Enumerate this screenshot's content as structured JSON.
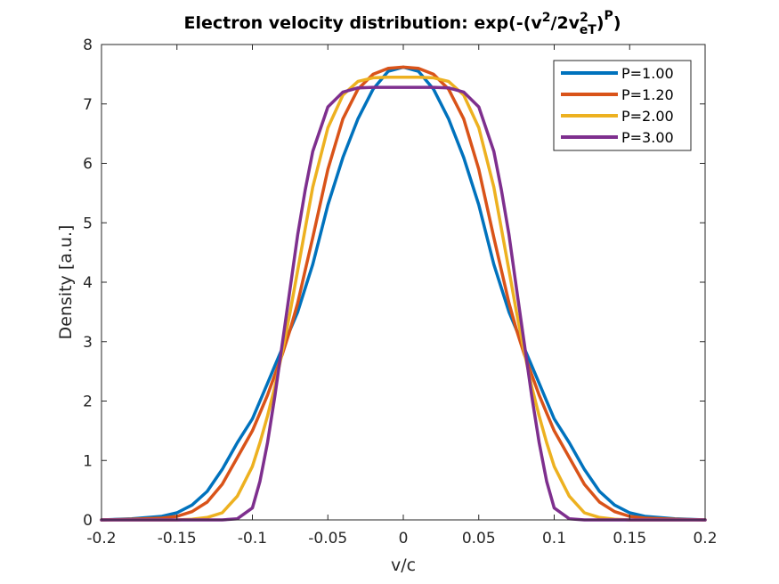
{
  "chart_data": {
    "type": "line",
    "title": {
      "main": "Electron velocity distribution: exp(-(v",
      "sup1": "2",
      "mid": "/2v",
      "sup2": "2",
      "sub2": "eT",
      "close": ")",
      "supP": "P",
      "end": ")"
    },
    "xlabel": "v/c",
    "ylabel": "Density [a.u.]",
    "xlim": [
      -0.2,
      0.2
    ],
    "ylim": [
      0,
      8
    ],
    "xticks": [
      -0.2,
      -0.15,
      -0.1,
      -0.05,
      0,
      0.05,
      0.1,
      0.15,
      0.2
    ],
    "xtick_labels": [
      "-0.2",
      "-0.15",
      "-0.1",
      "-0.05",
      "0",
      "0.05",
      "0.1",
      "0.15",
      "0.2"
    ],
    "yticks": [
      0,
      1,
      2,
      3,
      4,
      5,
      6,
      7,
      8
    ],
    "ytick_labels": [
      "0",
      "1",
      "2",
      "3",
      "4",
      "5",
      "6",
      "7",
      "8"
    ],
    "grid": false,
    "legend_position": "top-right",
    "x": [
      -0.2,
      -0.18,
      -0.16,
      -0.15,
      -0.14,
      -0.13,
      -0.12,
      -0.11,
      -0.1,
      -0.095,
      -0.09,
      -0.085,
      -0.08,
      -0.075,
      -0.07,
      -0.065,
      -0.06,
      -0.05,
      -0.04,
      -0.03,
      -0.02,
      -0.01,
      0,
      0.01,
      0.02,
      0.03,
      0.04,
      0.05,
      0.06,
      0.065,
      0.07,
      0.075,
      0.08,
      0.085,
      0.09,
      0.095,
      0.1,
      0.11,
      0.12,
      0.13,
      0.14,
      0.15,
      0.16,
      0.18,
      0.2
    ],
    "series": [
      {
        "name": "P=1.00",
        "color": "#0072BD",
        "values": [
          0.0,
          0.02,
          0.06,
          0.12,
          0.25,
          0.48,
          0.85,
          1.3,
          1.7,
          2.0,
          2.3,
          2.6,
          2.9,
          3.2,
          3.5,
          3.9,
          4.3,
          5.3,
          6.1,
          6.75,
          7.25,
          7.55,
          7.62,
          7.55,
          7.25,
          6.75,
          6.1,
          5.3,
          4.3,
          3.9,
          3.5,
          3.2,
          2.9,
          2.6,
          2.3,
          2.0,
          1.7,
          1.3,
          0.85,
          0.48,
          0.25,
          0.12,
          0.06,
          0.02,
          0.0
        ]
      },
      {
        "name": "P=1.20",
        "color": "#D95319",
        "values": [
          0.0,
          0.01,
          0.03,
          0.06,
          0.14,
          0.3,
          0.6,
          1.05,
          1.5,
          1.8,
          2.1,
          2.45,
          2.8,
          3.2,
          3.65,
          4.2,
          4.75,
          5.9,
          6.75,
          7.25,
          7.5,
          7.6,
          7.62,
          7.6,
          7.5,
          7.25,
          6.75,
          5.9,
          4.75,
          4.2,
          3.65,
          3.2,
          2.8,
          2.45,
          2.1,
          1.8,
          1.5,
          1.05,
          0.6,
          0.3,
          0.14,
          0.06,
          0.03,
          0.01,
          0.0
        ]
      },
      {
        "name": "P=2.00",
        "color": "#EDB120",
        "values": [
          0.0,
          0.0,
          0.0,
          0.0,
          0.01,
          0.04,
          0.12,
          0.4,
          0.9,
          1.3,
          1.75,
          2.25,
          2.85,
          3.5,
          4.2,
          4.9,
          5.6,
          6.6,
          7.15,
          7.38,
          7.44,
          7.45,
          7.45,
          7.45,
          7.44,
          7.38,
          7.15,
          6.6,
          5.6,
          4.9,
          4.2,
          3.5,
          2.85,
          2.25,
          1.75,
          1.3,
          0.9,
          0.4,
          0.12,
          0.04,
          0.01,
          0.0,
          0.0,
          0.0,
          0.0
        ]
      },
      {
        "name": "P=3.00",
        "color": "#7E2F8E",
        "values": [
          0.0,
          0.0,
          0.0,
          0.0,
          0.0,
          0.0,
          0.0,
          0.02,
          0.2,
          0.65,
          1.3,
          2.1,
          3.0,
          3.9,
          4.8,
          5.55,
          6.2,
          6.95,
          7.2,
          7.27,
          7.28,
          7.28,
          7.28,
          7.28,
          7.28,
          7.27,
          7.2,
          6.95,
          6.2,
          5.55,
          4.8,
          3.9,
          3.0,
          2.1,
          1.3,
          0.65,
          0.2,
          0.02,
          0.0,
          0.0,
          0.0,
          0.0,
          0.0,
          0.0,
          0.0
        ]
      }
    ]
  }
}
